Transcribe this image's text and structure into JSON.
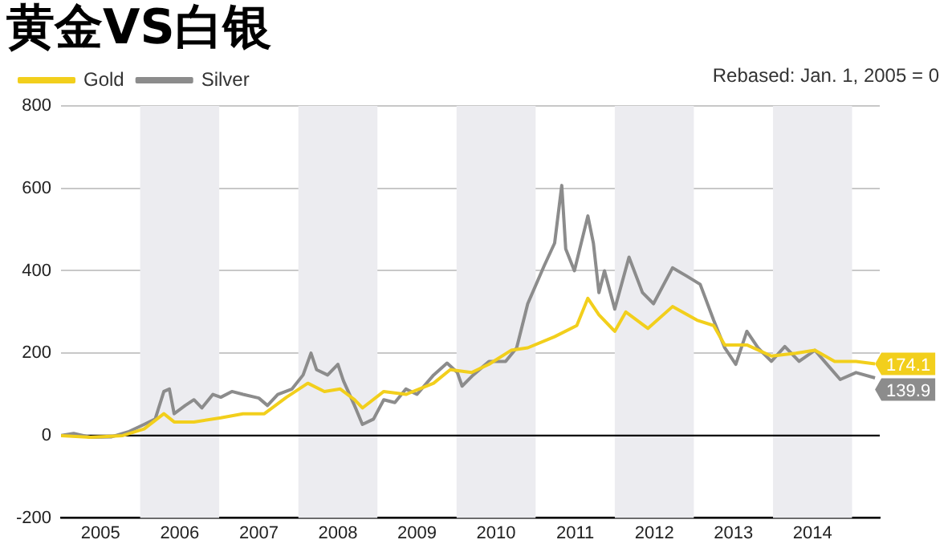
{
  "chart_data": {
    "type": "line",
    "title": "黄金VS白银",
    "annotations": [
      "Rebased: Jan. 1, 2005 = 0"
    ],
    "legend": "top left",
    "grid": "y",
    "marker": "none",
    "line_style": "solid",
    "xlim": [
      2005,
      2015.35
    ],
    "xticks": [
      {
        "value": 2005.5,
        "label": "2005"
      },
      {
        "value": 2006.5,
        "label": "2006"
      },
      {
        "value": 2007.5,
        "label": "2007"
      },
      {
        "value": 2008.5,
        "label": "2008"
      },
      {
        "value": 2009.5,
        "label": "2009"
      },
      {
        "value": 2010.5,
        "label": "2010"
      },
      {
        "value": 2011.5,
        "label": "2011"
      },
      {
        "value": 2012.5,
        "label": "2012"
      },
      {
        "value": 2013.5,
        "label": "2013"
      },
      {
        "value": 2014.5,
        "label": "2014"
      }
    ],
    "ylim": [
      -200,
      800
    ],
    "yticks": [
      -200,
      0,
      200,
      400,
      600,
      800
    ],
    "ref_lines": [
      {
        "axis": "y",
        "value": 0,
        "color": "#000000"
      }
    ],
    "bands": [
      {
        "axis": "x",
        "from": 2006,
        "to": 2007,
        "color": "#ececf0"
      },
      {
        "axis": "x",
        "from": 2008,
        "to": 2009,
        "color": "#ececf0"
      },
      {
        "axis": "x",
        "from": 2010,
        "to": 2011,
        "color": "#ececf0"
      },
      {
        "axis": "x",
        "from": 2012,
        "to": 2013,
        "color": "#ececf0"
      },
      {
        "axis": "x",
        "from": 2014,
        "to": 2015,
        "color": "#ececf0"
      }
    ],
    "series": [
      {
        "name": "Gold",
        "color": "#f2cf1c",
        "x": [
          2005.0,
          2005.37,
          2005.78,
          2006.05,
          2006.3,
          2006.43,
          2006.68,
          2007.02,
          2007.3,
          2007.57,
          2007.85,
          2008.12,
          2008.33,
          2008.53,
          2008.71,
          2008.81,
          2009.08,
          2009.36,
          2009.71,
          2009.92,
          2010.19,
          2010.41,
          2010.69,
          2010.9,
          2011.24,
          2011.52,
          2011.66,
          2011.8,
          2012.0,
          2012.14,
          2012.42,
          2012.73,
          2013.04,
          2013.25,
          2013.39,
          2013.67,
          2013.98,
          2014.29,
          2014.53,
          2014.78,
          2015.05,
          2015.29
        ],
        "values": [
          0,
          -4,
          0,
          16,
          53,
          33,
          33,
          43,
          53,
          53,
          93,
          127,
          107,
          113,
          87,
          67,
          107,
          100,
          127,
          160,
          153,
          173,
          207,
          213,
          240,
          267,
          333,
          293,
          253,
          300,
          260,
          313,
          280,
          267,
          220,
          220,
          193,
          200,
          207,
          180,
          180,
          174.1
        ],
        "value_labels": [
          null,
          null,
          null,
          null,
          null,
          null,
          null,
          null,
          null,
          null,
          null,
          null,
          null,
          null,
          null,
          null,
          null,
          null,
          null,
          null,
          null,
          null,
          null,
          null,
          null,
          null,
          null,
          null,
          null,
          null,
          null,
          null,
          null,
          null,
          null,
          null,
          null,
          null,
          null,
          null,
          null,
          "174.1"
        ]
      },
      {
        "name": "Silver",
        "color": "#8c8c8c",
        "x": [
          2005.0,
          2005.16,
          2005.37,
          2005.64,
          2005.85,
          2006.05,
          2006.19,
          2006.3,
          2006.37,
          2006.43,
          2006.57,
          2006.68,
          2006.78,
          2006.92,
          2007.02,
          2007.16,
          2007.3,
          2007.5,
          2007.61,
          2007.74,
          2007.92,
          2008.06,
          2008.16,
          2008.23,
          2008.37,
          2008.5,
          2008.57,
          2008.71,
          2008.81,
          2008.95,
          2009.08,
          2009.22,
          2009.36,
          2009.5,
          2009.71,
          2009.88,
          2010.01,
          2010.07,
          2010.21,
          2010.41,
          2010.62,
          2010.76,
          2010.9,
          2011.11,
          2011.24,
          2011.33,
          2011.38,
          2011.49,
          2011.66,
          2011.73,
          2011.8,
          2011.87,
          2012.0,
          2012.18,
          2012.35,
          2012.49,
          2012.73,
          2012.91,
          2013.08,
          2013.25,
          2013.39,
          2013.53,
          2013.67,
          2013.81,
          2013.98,
          2014.15,
          2014.33,
          2014.53,
          2014.71,
          2014.85,
          2015.05,
          2015.29
        ],
        "values": [
          0,
          5,
          -4,
          -3,
          9,
          27,
          40,
          107,
          113,
          53,
          73,
          87,
          67,
          100,
          93,
          107,
          100,
          91,
          73,
          100,
          113,
          147,
          200,
          160,
          147,
          173,
          133,
          73,
          27,
          40,
          87,
          80,
          113,
          100,
          147,
          176,
          153,
          120,
          147,
          180,
          180,
          213,
          320,
          413,
          467,
          607,
          453,
          400,
          533,
          467,
          347,
          400,
          307,
          433,
          347,
          320,
          407,
          387,
          367,
          280,
          213,
          173,
          253,
          213,
          180,
          216,
          180,
          207,
          167,
          136,
          153,
          139.9
        ],
        "value_labels": [
          null,
          null,
          null,
          null,
          null,
          null,
          null,
          null,
          null,
          null,
          null,
          null,
          null,
          null,
          null,
          null,
          null,
          null,
          null,
          null,
          null,
          null,
          null,
          null,
          null,
          null,
          null,
          null,
          null,
          null,
          null,
          null,
          null,
          null,
          null,
          null,
          null,
          null,
          null,
          null,
          null,
          null,
          null,
          null,
          null,
          null,
          null,
          null,
          null,
          null,
          null,
          null,
          null,
          null,
          null,
          null,
          null,
          null,
          null,
          null,
          null,
          null,
          null,
          null,
          null,
          null,
          null,
          null,
          null,
          null,
          null,
          "139.9"
        ]
      }
    ]
  }
}
